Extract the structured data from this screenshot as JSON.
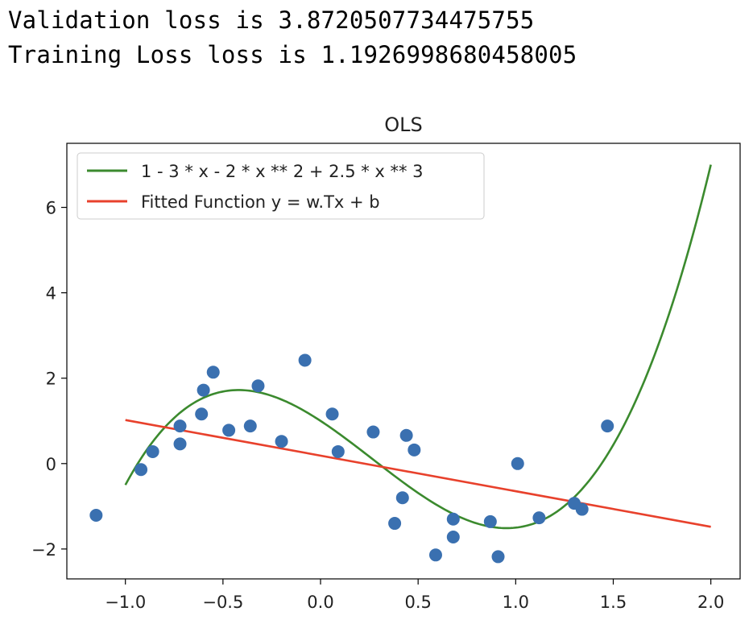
{
  "output": {
    "line1": "Validation loss is 3.8720507734475755",
    "line2": "Training Loss loss is 1.1926998680458005"
  },
  "chart_data": {
    "type": "scatter",
    "title": "OLS",
    "xlabel": "",
    "ylabel": "",
    "xlim": [
      -1.3,
      2.15
    ],
    "ylim": [
      -2.7,
      7.5
    ],
    "xticks": [
      -1.0,
      -0.5,
      0.0,
      0.5,
      1.0,
      1.5,
      2.0
    ],
    "xtick_labels": [
      "−1.0",
      "−0.5",
      "0.0",
      "0.5",
      "1.0",
      "1.5",
      "2.0"
    ],
    "yticks": [
      -2,
      0,
      2,
      4,
      6
    ],
    "ytick_labels": [
      "−2",
      "0",
      "2",
      "4",
      "6"
    ],
    "grid": false,
    "legend_position": "upper-left",
    "series": [
      {
        "name": "1 - 3 * x - 2 * x ** 2 + 2.5 * x ** 3",
        "kind": "line",
        "color": "#3b8a2e",
        "function": "1 - 3*x - 2*x^2 + 2.5*x^3",
        "x_range": [
          -1.0,
          2.0
        ]
      },
      {
        "name": "Fitted Function y = w.Tx + b",
        "kind": "line",
        "color": "#e8412c",
        "x": [
          -1.0,
          2.0
        ],
        "y": [
          1.02,
          -1.48
        ]
      },
      {
        "kind": "scatter",
        "color": "#3a70b0",
        "points": [
          [
            -1.15,
            -1.21
          ],
          [
            -0.92,
            -0.14
          ],
          [
            -0.86,
            0.28
          ],
          [
            -0.72,
            0.88
          ],
          [
            -0.72,
            0.46
          ],
          [
            -0.61,
            1.16
          ],
          [
            -0.6,
            1.72
          ],
          [
            -0.55,
            2.14
          ],
          [
            -0.47,
            0.78
          ],
          [
            -0.36,
            0.88
          ],
          [
            -0.32,
            1.82
          ],
          [
            -0.2,
            0.52
          ],
          [
            -0.08,
            2.42
          ],
          [
            0.06,
            1.16
          ],
          [
            0.09,
            0.28
          ],
          [
            0.27,
            0.74
          ],
          [
            0.38,
            -1.4
          ],
          [
            0.42,
            -0.8
          ],
          [
            0.44,
            0.66
          ],
          [
            0.48,
            0.32
          ],
          [
            0.59,
            -2.14
          ],
          [
            0.68,
            -1.72
          ],
          [
            0.68,
            -1.3
          ],
          [
            0.87,
            -1.36
          ],
          [
            0.91,
            -2.18
          ],
          [
            1.01,
            0.0
          ],
          [
            1.12,
            -1.27
          ],
          [
            1.3,
            -0.93
          ],
          [
            1.34,
            -1.07
          ],
          [
            1.47,
            0.88
          ]
        ]
      }
    ]
  }
}
